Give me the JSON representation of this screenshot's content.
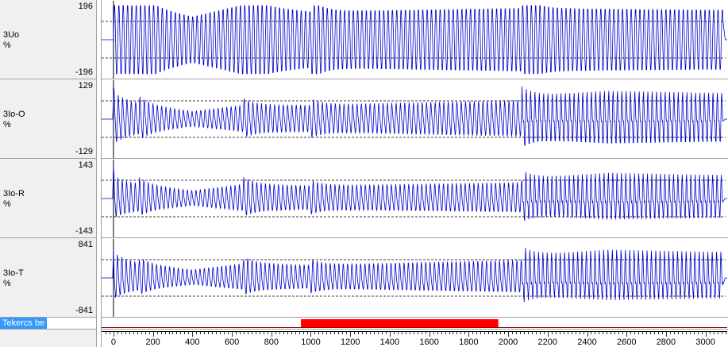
{
  "colors": {
    "trace": "#0000cc",
    "digital": "#ff0000",
    "grid": "#000000"
  },
  "channels": [
    {
      "name": "3Uo",
      "unit": "%",
      "max": "196",
      "min": "-196"
    },
    {
      "name": "3Io-O",
      "unit": "%",
      "max": "129",
      "min": "-129"
    },
    {
      "name": "3Io-R",
      "unit": "%",
      "max": "143",
      "min": "-143"
    },
    {
      "name": "3Io-T",
      "unit": "%",
      "max": "841",
      "min": "-841"
    }
  ],
  "digital": {
    "name": "Tekercs be",
    "on_start": 950,
    "on_end": 1950
  },
  "xaxis": {
    "min": -60,
    "max": 3110,
    "ticks": [
      0,
      200,
      400,
      600,
      800,
      1000,
      1200,
      1400,
      1600,
      1800,
      2000,
      2200,
      2400,
      2600,
      2800,
      3000
    ]
  },
  "chart_data": {
    "type": "line",
    "title": "",
    "xlabel": "",
    "ylabel": "%",
    "x_range": [
      -60,
      3110
    ],
    "event_times": [
      0,
      130,
      660,
      1000,
      2070
    ],
    "series": [
      {
        "name": "3Uo",
        "ylim": [
          -196,
          196
        ],
        "amplitude_profile": [
          [
            0,
            0.9
          ],
          [
            130,
            1.0
          ],
          [
            400,
            0.65
          ],
          [
            660,
            1.0
          ],
          [
            1000,
            0.8
          ],
          [
            2070,
            0.9
          ],
          [
            3000,
            0.85
          ]
        ]
      },
      {
        "name": "3Io-O",
        "ylim": [
          -129,
          129
        ],
        "amplitude_profile": [
          [
            0,
            0.6
          ],
          [
            130,
            0.5
          ],
          [
            400,
            0.25
          ],
          [
            660,
            0.45
          ],
          [
            1000,
            0.45
          ],
          [
            2070,
            0.6
          ],
          [
            2500,
            0.75
          ],
          [
            3000,
            0.7
          ]
        ]
      },
      {
        "name": "3Io-R",
        "ylim": [
          -143,
          143
        ],
        "amplitude_profile": [
          [
            0,
            0.5
          ],
          [
            130,
            0.45
          ],
          [
            400,
            0.25
          ],
          [
            660,
            0.45
          ],
          [
            1000,
            0.4
          ],
          [
            2070,
            0.5
          ],
          [
            2500,
            0.65
          ],
          [
            3000,
            0.6
          ]
        ]
      },
      {
        "name": "3Io-T",
        "ylim": [
          -841,
          841
        ],
        "amplitude_profile": [
          [
            0,
            0.55
          ],
          [
            130,
            0.45
          ],
          [
            400,
            0.25
          ],
          [
            660,
            0.45
          ],
          [
            1000,
            0.4
          ],
          [
            2070,
            0.55
          ],
          [
            2500,
            0.7
          ],
          [
            3000,
            0.65
          ]
        ]
      }
    ]
  }
}
